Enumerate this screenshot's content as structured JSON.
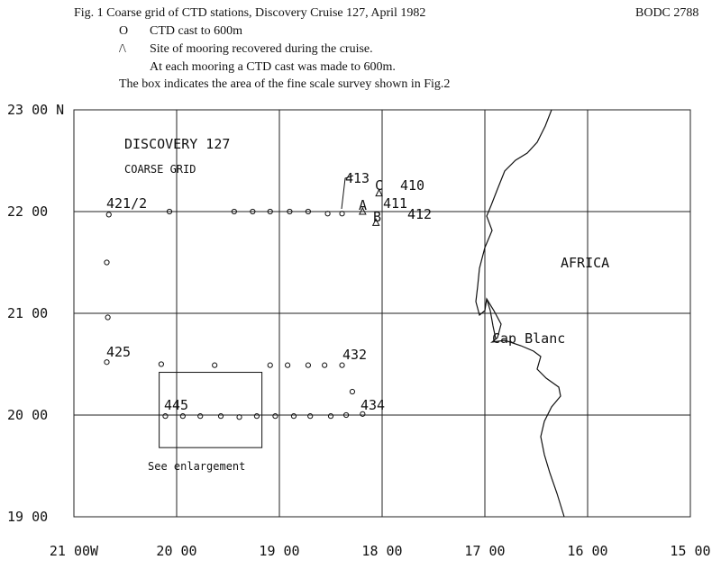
{
  "chart_data": {
    "type": "map",
    "title": "Fig. 1  Coarse grid of CTD stations, Discovery Cruise 127, April 1982",
    "reference": "BODC 2788",
    "legend": [
      {
        "symbol": "O",
        "text": "CTD cast to 600m"
      },
      {
        "symbol": "/\\",
        "text": "Site of mooring recovered during the cruise."
      }
    ],
    "legend_note": "At each mooring a CTD cast was made to 600m.",
    "caption": "The box indicates the area of the fine scale survey shown in Fig.2",
    "xlim": [
      -21,
      -15
    ],
    "ylim": [
      19,
      23
    ],
    "xticks": [
      {
        "value": -21,
        "label": "21 00W"
      },
      {
        "value": -20,
        "label": "20 00"
      },
      {
        "value": -19,
        "label": "19 00"
      },
      {
        "value": -18,
        "label": "18 00"
      },
      {
        "value": -17,
        "label": "17 00"
      },
      {
        "value": -16,
        "label": "16 00"
      },
      {
        "value": -15,
        "label": "15 00"
      }
    ],
    "yticks": [
      {
        "value": 19,
        "label": "19 00"
      },
      {
        "value": 20,
        "label": "20 00"
      },
      {
        "value": 21,
        "label": "21 00"
      },
      {
        "value": 22,
        "label": "22 00"
      },
      {
        "value": 23,
        "label": "23 00 N"
      }
    ],
    "grid": true,
    "series": [
      {
        "name": "CTD cast to 600m",
        "marker": "circle",
        "color": "#111",
        "x": [
          -20.66,
          -20.07,
          -19.44,
          -19.26,
          -19.09,
          -18.9,
          -18.72,
          -18.53,
          -18.39,
          -20.68,
          -20.67,
          -20.68,
          -20.15,
          -19.63,
          -19.09,
          -18.92,
          -18.72,
          -18.56,
          -18.39,
          -18.29,
          -20.11,
          -19.94,
          -19.77,
          -19.57,
          -19.39,
          -19.22,
          -19.04,
          -18.86,
          -18.7,
          -18.5,
          -18.35,
          -18.19
        ],
        "values": [
          21.97,
          22.0,
          22.0,
          22.0,
          22.0,
          22.0,
          22.0,
          21.98,
          21.98,
          21.5,
          20.96,
          20.52,
          20.5,
          20.49,
          20.49,
          20.49,
          20.49,
          20.49,
          20.49,
          20.23,
          19.99,
          19.99,
          19.99,
          19.99,
          19.98,
          19.99,
          19.99,
          19.99,
          19.99,
          19.99,
          20.0,
          20.01
        ]
      },
      {
        "name": "Site of mooring recovered during the cruise.",
        "marker": "triangle",
        "color": "#111",
        "x": [
          -18.19,
          -18.03,
          -18.06
        ],
        "values": [
          22.0,
          22.18,
          21.89
        ]
      }
    ],
    "box": {
      "x": [
        -20.17,
        -19.17
      ],
      "y": [
        19.68,
        20.42
      ]
    },
    "annotations": [
      "DISCOVERY 127",
      "COARSE GRID",
      "413",
      "C",
      "410",
      "A",
      "411",
      "B",
      "412",
      "421/2",
      "425",
      "432",
      "445",
      "434",
      "AFRICA",
      "Cap Blanc",
      "See enlargement"
    ]
  }
}
